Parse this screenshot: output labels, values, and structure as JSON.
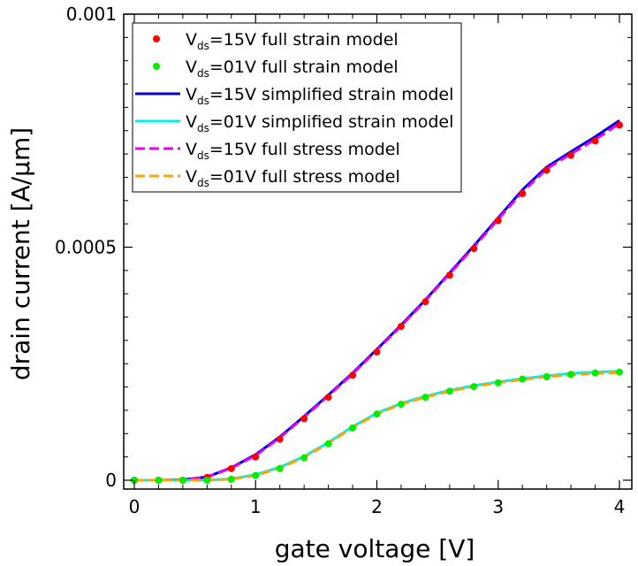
{
  "chart_data": {
    "type": "line",
    "xlabel": "gate voltage [V]",
    "ylabel": "drain current [A/μm]",
    "xlim": [
      -0.1,
      4.1
    ],
    "ylim": [
      -1.5e-05,
      0.001
    ],
    "xticks": [
      0,
      1,
      2,
      3,
      4
    ],
    "xtick_labels": [
      "0",
      "1",
      "2",
      "3",
      "4"
    ],
    "yticks": [
      0,
      0.0005,
      0.001
    ],
    "ytick_labels": [
      "0",
      "0.0005",
      "0.001"
    ],
    "grid": false,
    "legend_position": "top-left",
    "x": [
      0,
      0.2,
      0.4,
      0.6,
      0.8,
      1.0,
      1.2,
      1.4,
      1.6,
      1.8,
      2.0,
      2.2,
      2.4,
      2.6,
      2.8,
      3.0,
      3.2,
      3.4,
      3.6,
      3.8,
      4.0
    ],
    "series": [
      {
        "label_main": "V",
        "label_sub": "ds",
        "label_rest": "=15V full strain model",
        "style": "markers",
        "color": "#ff0000",
        "values": [
          0,
          0,
          0,
          6e-06,
          2.5e-05,
          5e-05,
          8.8e-05,
          0.000132,
          0.000178,
          0.000225,
          0.000275,
          0.00033,
          0.000383,
          0.00044,
          0.000497,
          0.000557,
          0.000615,
          0.000665,
          0.000697,
          0.000728,
          0.000762
        ]
      },
      {
        "label_main": "V",
        "label_sub": "ds",
        "label_rest": "=01V full strain model",
        "style": "markers",
        "color": "#00ee00",
        "values": [
          0,
          0,
          0,
          0,
          2e-06,
          1e-05,
          2.5e-05,
          4.8e-05,
          7.8e-05,
          0.000112,
          0.000142,
          0.000163,
          0.000178,
          0.000191,
          0.000201,
          0.000209,
          0.000217,
          0.000222,
          0.000227,
          0.00023,
          0.000232
        ]
      },
      {
        "label_main": "V",
        "label_sub": "ds",
        "label_rest": "=15V simplified strain model",
        "style": "solid",
        "color": "#0000dd",
        "values": [
          0,
          0,
          1e-06,
          7e-06,
          2.7e-05,
          5.5e-05,
          9.3e-05,
          0.000137,
          0.000183,
          0.00023,
          0.000281,
          0.000333,
          0.000387,
          0.000445,
          0.000503,
          0.000563,
          0.000623,
          0.000672,
          0.000705,
          0.000737,
          0.000772
        ]
      },
      {
        "label_main": "V",
        "label_sub": "ds",
        "label_rest": "=01V simplified strain model",
        "style": "solid",
        "color": "#00eeee",
        "values": [
          0,
          0,
          0,
          0,
          3e-06,
          1.2e-05,
          2.8e-05,
          5.1e-05,
          8.1e-05,
          0.000115,
          0.000144,
          0.000165,
          0.00018,
          0.000193,
          0.000203,
          0.000211,
          0.000218,
          0.000224,
          0.000229,
          0.000232,
          0.000234
        ]
      },
      {
        "label_main": "V",
        "label_sub": "ds",
        "label_rest": "=15V full stress model",
        "style": "dashed",
        "color": "#ee00ee",
        "values": [
          0,
          0,
          1e-06,
          7e-06,
          2.6e-05,
          5.3e-05,
          9.1e-05,
          0.000135,
          0.000181,
          0.000228,
          0.000279,
          0.000331,
          0.000385,
          0.000443,
          0.0005,
          0.00056,
          0.000618,
          0.000668,
          0.0007,
          0.000731,
          0.000765
        ]
      },
      {
        "label_main": "V",
        "label_sub": "ds",
        "label_rest": "=01V full stress model",
        "style": "dashed",
        "color": "#ffa500",
        "values": [
          0,
          0,
          0,
          0,
          2e-06,
          1e-05,
          2.6e-05,
          4.9e-05,
          7.9e-05,
          0.000113,
          0.000142,
          0.000163,
          0.000178,
          0.000191,
          0.000201,
          0.000209,
          0.000216,
          0.000222,
          0.000226,
          0.000229,
          0.000231
        ]
      }
    ]
  }
}
